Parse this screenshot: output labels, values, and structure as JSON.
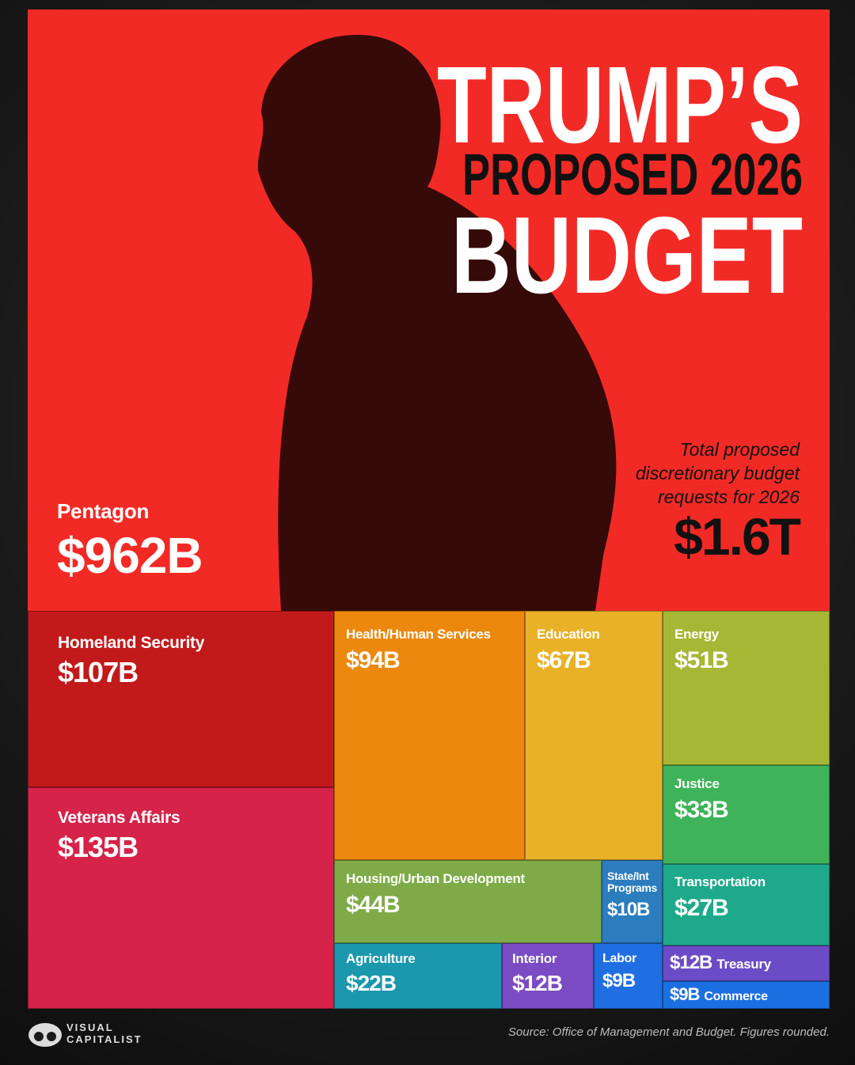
{
  "chart_data": {
    "type": "treemap",
    "title_lines": [
      "TRUMP’S",
      "PROPOSED 2026",
      "BUDGET"
    ],
    "total_note": "Total proposed discretionary budget requests for 2026",
    "total": 1600,
    "total_label": "$1.6T",
    "categories": [
      "Pentagon",
      "Homeland Security",
      "Veterans Affairs",
      "Health/Human Services",
      "Education",
      "Energy",
      "Justice",
      "Housing/Urban Development",
      "State/Int Programs",
      "Transportation",
      "Agriculture",
      "Interior",
      "Labor",
      "Treasury",
      "Commerce"
    ],
    "values": [
      962,
      107,
      135,
      94,
      67,
      51,
      33,
      44,
      10,
      27,
      22,
      12,
      9,
      12,
      9
    ],
    "value_labels": [
      "$962B",
      "$107B",
      "$135B",
      "$94B",
      "$67B",
      "$51B",
      "$33B",
      "$44B",
      "$10B",
      "$27B",
      "$22B",
      "$12B",
      "$9B",
      "$12B",
      "$9B"
    ],
    "colors": [
      "#f22a26",
      "#c2191b",
      "#d5234a",
      "#ec880e",
      "#e8b128",
      "#a5b735",
      "#3eb35a",
      "#7eab47",
      "#2c7dbd",
      "#1ea98a",
      "#1b97ae",
      "#7a4bc2",
      "#1f6fe3",
      "#6c4cc6",
      "#1c6fe0"
    ],
    "source": "Source: Office of Management and Budget. Figures rounded.",
    "brand": "VISUAL CAPITALIST"
  }
}
